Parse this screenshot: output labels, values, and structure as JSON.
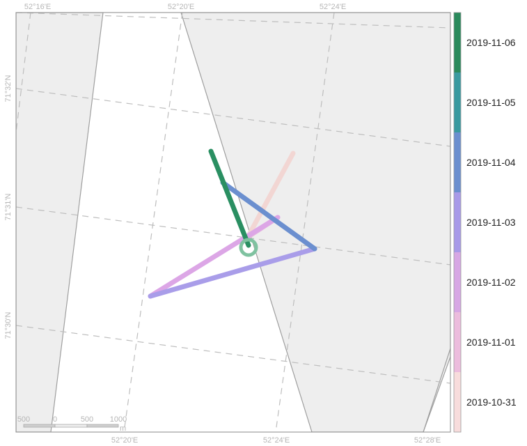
{
  "map": {
    "lon_ticks_top": [
      "52°16'E",
      "52°20'E",
      "52°24'E"
    ],
    "lon_ticks_bottom": [
      "52°20'E",
      "52°24'E",
      "52°28'E"
    ],
    "lat_ticks_left": [
      "71°32'N",
      "71°31'N",
      "71°30'N"
    ],
    "scale_bar": {
      "labels": [
        "500",
        "0",
        "500",
        "1000"
      ],
      "unit": "m"
    },
    "colors": {
      "land": "#eeeeee",
      "water": "#ffffff",
      "coast": "#9e9e9e",
      "grid": "#bdbdbd"
    }
  },
  "track": {
    "segments": [
      {
        "date": "2019-10-31",
        "color": "#f2d6d3"
      },
      {
        "date": "2019-11-01",
        "color": "#e8b6de"
      },
      {
        "date": "2019-11-02",
        "color": "#dca6e6"
      },
      {
        "date": "2019-11-03",
        "color": "#a99de9"
      },
      {
        "date": "2019-11-04",
        "color": "#6b8fcf"
      },
      {
        "date": "2019-11-06",
        "color": "#2a8f62"
      }
    ],
    "end_marker_color": "#7fc2a0"
  },
  "legend": {
    "items": [
      {
        "label": "2019-11-06",
        "color": "#2a8a5c"
      },
      {
        "label": "2019-11-05",
        "color": "#3a9aa0"
      },
      {
        "label": "2019-11-04",
        "color": "#6b8fcf"
      },
      {
        "label": "2019-11-03",
        "color": "#a89ae8"
      },
      {
        "label": "2019-11-02",
        "color": "#d7a7e4"
      },
      {
        "label": "2019-11-01",
        "color": "#ecbcdd"
      },
      {
        "label": "2019-10-31",
        "color": "#f8dcdc"
      }
    ]
  }
}
